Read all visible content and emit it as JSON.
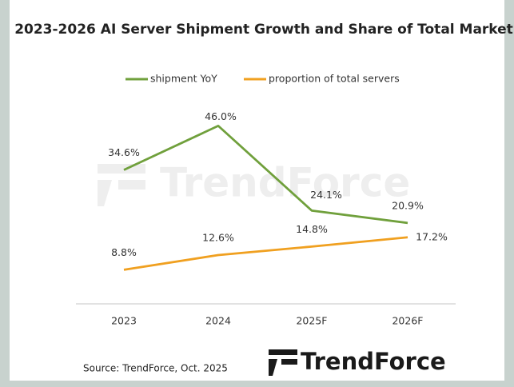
{
  "chart_data": {
    "type": "line",
    "title": "2023-2026 AI Server Shipment Growth and Share of Total Market",
    "categories": [
      "2023",
      "2024",
      "2025F",
      "2026F"
    ],
    "series": [
      {
        "name": "shipment YoY",
        "color": "#70a03c",
        "values": [
          34.6,
          46.0,
          24.1,
          20.9
        ],
        "value_labels": [
          "34.6%",
          "46.0%",
          "24.1%",
          "20.9%"
        ]
      },
      {
        "name": "proportion of total servers",
        "color": "#f0a020",
        "values": [
          8.8,
          12.6,
          14.8,
          17.2
        ],
        "value_labels": [
          "8.8%",
          "12.6%",
          "14.8%",
          "17.2%"
        ]
      }
    ],
    "legend": "top",
    "source": "Source: TrendForce, Oct. 2025",
    "watermark": "TrendForce",
    "logo": "TrendForce"
  }
}
